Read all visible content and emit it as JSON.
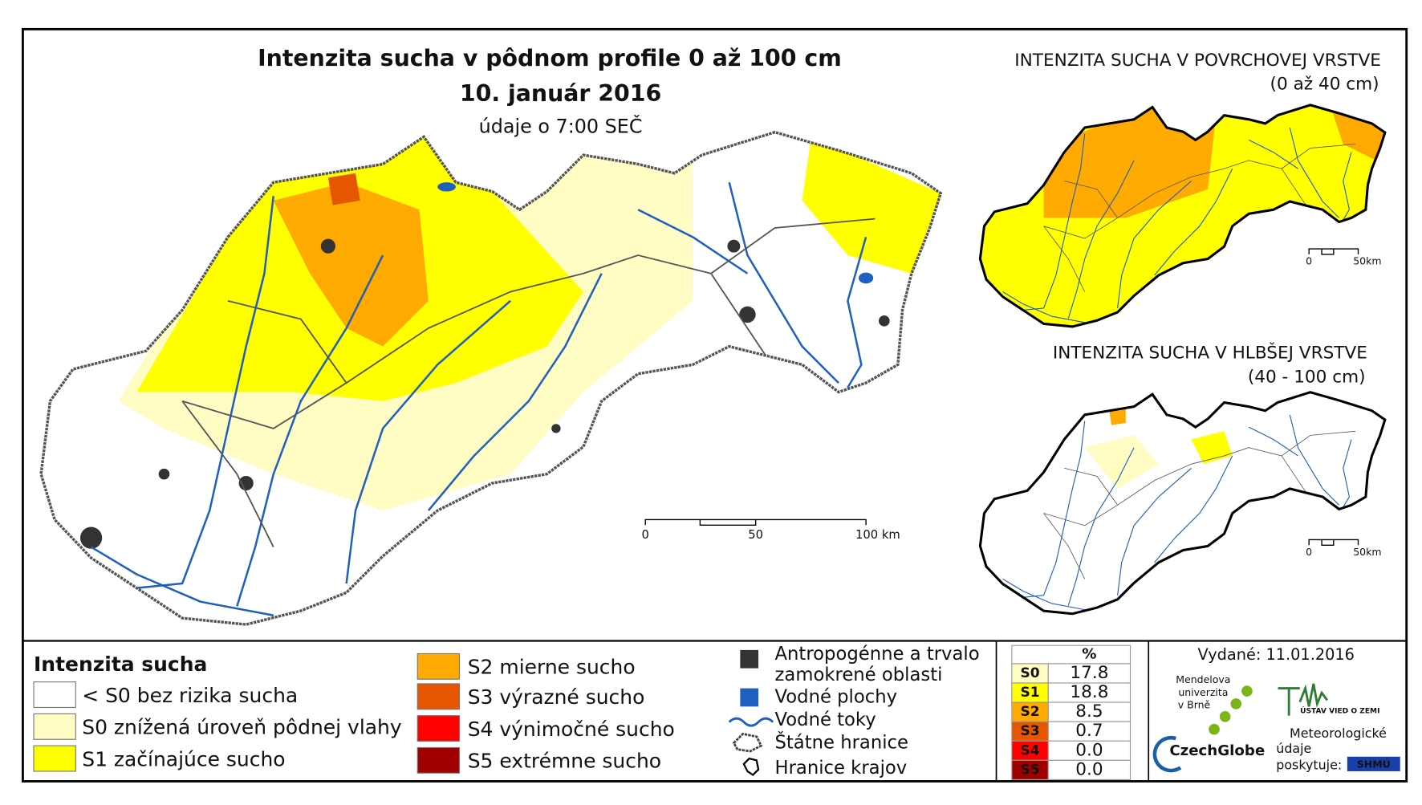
{
  "map": {
    "title": "Intenzita sucha v pôdnom profile 0 až 100 cm",
    "date": "10. január 2016",
    "time_note": "údaje o 7:00 SEČ",
    "scale_labels": [
      "0",
      "50",
      "100 km"
    ],
    "insets": [
      {
        "title": "INTENZITA SUCHA V POVRCHOVEJ VRSTVE",
        "subtitle": "(0 až 40 cm)",
        "scale_labels": [
          "0",
          "50km"
        ]
      },
      {
        "title": "INTENZITA SUCHA V HLBŠEJ VRSTVE",
        "subtitle": "(40 - 100 cm)",
        "scale_labels": [
          "0",
          "50km"
        ]
      }
    ]
  },
  "legend": {
    "title": "Intenzita sucha",
    "classes": [
      {
        "label": "< S0 bez rizika sucha",
        "color": "#ffffff"
      },
      {
        "label": "S0 znížená úroveň pôdnej vlahy",
        "color": "#fffcc4"
      },
      {
        "label": "S1 začínajúce sucho",
        "color": "#ffff00"
      },
      {
        "label": "S2 mierne sucho",
        "color": "#ffaa00"
      },
      {
        "label": "S3 výrazné sucho",
        "color": "#e65500"
      },
      {
        "label": "S4 výnimočné sucho",
        "color": "#ff0000"
      },
      {
        "label": "S5 extrémne sucho",
        "color": "#a00000"
      }
    ],
    "other": [
      {
        "lines": [
          "Antropogénne a trvalo",
          "zamokrené oblasti"
        ]
      },
      {
        "lines": [
          "Vodné plochy"
        ]
      },
      {
        "lines": [
          "Vodné toky"
        ]
      },
      {
        "lines": [
          "Štátne hranice"
        ]
      },
      {
        "lines": [
          "Hranice krajov"
        ]
      }
    ]
  },
  "table": {
    "header": "%",
    "rows": [
      [
        "S0",
        "17.8"
      ],
      [
        "S1",
        "18.8"
      ],
      [
        "S2",
        "8.5"
      ],
      [
        "S3",
        "0.7"
      ],
      [
        "S4",
        "0.0"
      ],
      [
        "S5",
        "0.0"
      ]
    ]
  },
  "issued": "Vydané: 11.01.2016",
  "logos": {
    "mendel": [
      "Mendelova",
      "univerzita",
      "v Brně"
    ],
    "czechglobe": "CzechGlobe",
    "uvz": "ÚSTAV VIED O ZEMI",
    "meteo": [
      "Meteorologické",
      "údaje",
      "poskytuje:"
    ],
    "shmu": "SHMÚ"
  }
}
